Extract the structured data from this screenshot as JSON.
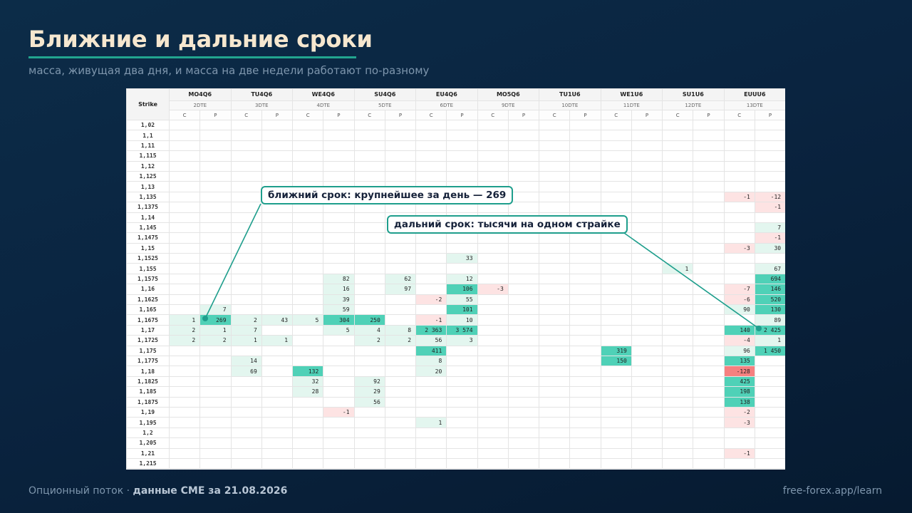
{
  "slide": {
    "title": "Ближние и дальние сроки",
    "subtitle": "масса, живущая два дня, и масса на две недели работают по-разному"
  },
  "table": {
    "strike_header": "Strike",
    "call_label": "C",
    "put_label": "P",
    "expiries": [
      {
        "code": "MO4Q6",
        "dte": "2DTE"
      },
      {
        "code": "TU4Q6",
        "dte": "3DTE"
      },
      {
        "code": "WE4Q6",
        "dte": "4DTE"
      },
      {
        "code": "SU4Q6",
        "dte": "5DTE"
      },
      {
        "code": "EU4Q6",
        "dte": "6DTE"
      },
      {
        "code": "MO5Q6",
        "dte": "9DTE"
      },
      {
        "code": "TU1U6",
        "dte": "10DTE"
      },
      {
        "code": "WE1U6",
        "dte": "11DTE"
      },
      {
        "code": "SU1U6",
        "dte": "12DTE"
      },
      {
        "code": "EUUU6",
        "dte": "13DTE"
      }
    ],
    "rows": [
      {
        "strike": "1,02",
        "cells": {}
      },
      {
        "strike": "1,1",
        "cells": {}
      },
      {
        "strike": "1,11",
        "cells": {}
      },
      {
        "strike": "1,115",
        "cells": {}
      },
      {
        "strike": "1,12",
        "cells": {}
      },
      {
        "strike": "1,125",
        "cells": {}
      },
      {
        "strike": "1,13",
        "cells": {}
      },
      {
        "strike": "1,135",
        "cells": {
          "18": "-1",
          "19": "-12"
        }
      },
      {
        "strike": "1,1375",
        "cells": {
          "19": "-1"
        }
      },
      {
        "strike": "1,14",
        "cells": {}
      },
      {
        "strike": "1,145",
        "cells": {
          "19": "7"
        }
      },
      {
        "strike": "1,1475",
        "cells": {
          "19": "-1"
        }
      },
      {
        "strike": "1,15",
        "cells": {
          "18": "-3",
          "19": "30"
        }
      },
      {
        "strike": "1,1525",
        "cells": {
          "9": "33"
        }
      },
      {
        "strike": "1,155",
        "cells": {
          "16": "1",
          "19": "67"
        }
      },
      {
        "strike": "1,1575",
        "cells": {
          "5": "82",
          "7": "62",
          "9": "12",
          "19": "694"
        }
      },
      {
        "strike": "1,16",
        "cells": {
          "5": "16",
          "7": "97",
          "9": "106",
          "10": "-3",
          "18": "-7",
          "19": "146"
        }
      },
      {
        "strike": "1,1625",
        "cells": {
          "5": "39",
          "8": "-2",
          "9": "55",
          "18": "-6",
          "19": "520"
        }
      },
      {
        "strike": "1,165",
        "cells": {
          "1": "7",
          "5": "59",
          "9": "101",
          "18": "90",
          "19": "130"
        }
      },
      {
        "strike": "1,1675",
        "cells": {
          "0": "1",
          "1": "269",
          "2": "2",
          "3": "43",
          "4": "5",
          "5": "304",
          "6": "250",
          "8": "-1",
          "9": "10",
          "19": "89"
        }
      },
      {
        "strike": "1,17",
        "cells": {
          "0": "2",
          "1": "1",
          "2": "7",
          "5": "5",
          "6": "4",
          "7": "8",
          "8": "2 363",
          "9": "3 574",
          "18": "140",
          "19": "2 425"
        }
      },
      {
        "strike": "1,1725",
        "cells": {
          "0": "2",
          "1": "2",
          "2": "1",
          "3": "1",
          "6": "2",
          "7": "2",
          "8": "56",
          "9": "3",
          "18": "-4",
          "19": "1"
        }
      },
      {
        "strike": "1,175",
        "cells": {
          "8": "411",
          "14": "319",
          "18": "96",
          "19": "1 450"
        }
      },
      {
        "strike": "1,1775",
        "cells": {
          "2": "14",
          "8": "8",
          "14": "150",
          "18": "135"
        }
      },
      {
        "strike": "1,18",
        "cells": {
          "2": "69",
          "4": "132",
          "8": "20",
          "18": "-128"
        }
      },
      {
        "strike": "1,1825",
        "cells": {
          "4": "32",
          "6": "92",
          "18": "425"
        }
      },
      {
        "strike": "1,185",
        "cells": {
          "4": "28",
          "6": "29",
          "18": "198"
        }
      },
      {
        "strike": "1,1875",
        "cells": {
          "6": "56",
          "18": "138"
        }
      },
      {
        "strike": "1,19",
        "cells": {
          "5": "-1",
          "18": "-2"
        }
      },
      {
        "strike": "1,195",
        "cells": {
          "8": "1",
          "18": "-3"
        }
      },
      {
        "strike": "1,2",
        "cells": {}
      },
      {
        "strike": "1,205",
        "cells": {}
      },
      {
        "strike": "1,21",
        "cells": {
          "18": "-1"
        }
      },
      {
        "strike": "1,215",
        "cells": {}
      }
    ]
  },
  "callouts": {
    "near": "ближний срок: крупнейшее за день — 269",
    "far": "дальний срок: тысячи на одном страйке"
  },
  "colors": {
    "accent": "#1e9e8c",
    "positive_light": "#e3f6ef",
    "positive_strong": "#4fd1b7",
    "negative_light": "#fde3e3",
    "negative_strong": "#f58080",
    "title": "#f6e7cf"
  },
  "footer": {
    "prefix": "Опционный поток · ",
    "source": "данные CME за 21.08.2026",
    "site": "free-forex.app/learn"
  }
}
